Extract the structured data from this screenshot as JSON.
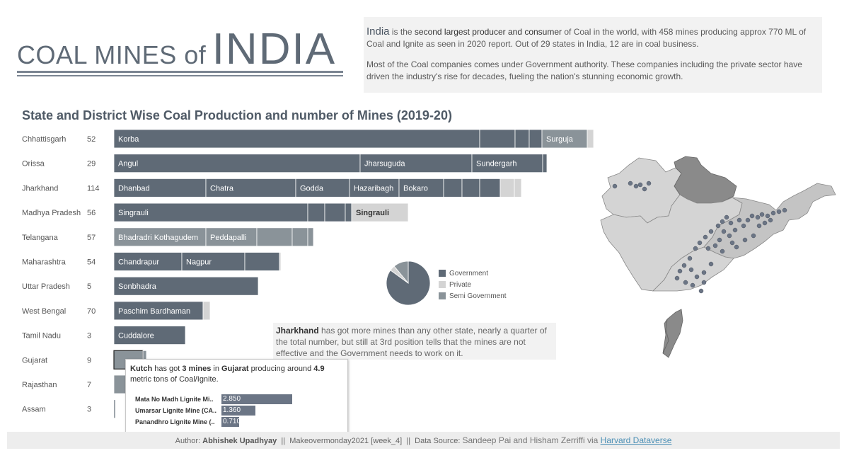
{
  "header": {
    "title_small": "COAL MINES of",
    "title_big": "INDIA",
    "intro_p1_india": "India",
    "intro_p1_a": " is the ",
    "intro_p1_b": "second largest producer and consumer",
    "intro_p1_c": " of Coal in the world, with 458 mines producing approx 770 ML of Coal and Ignite as seen in 2020 report. Out of 29 states in India, 12 are in coal business.",
    "intro_p2": "Most of the Coal companies comes under Government authority. These companies including the private sector have driven the industry's rise for decades, fueling the nation's stunning economic growth."
  },
  "subtitle": "State and District Wise Coal Production and number of Mines (2019-20)",
  "chart_data": {
    "type": "bar",
    "title": "State and District Wise Coal Production and number of Mines (2019-20)",
    "orientation": "horizontal-stacked",
    "colors": {
      "Government": "#5f6a76",
      "Private": "#d4d4d4",
      "Semi Government": "#8a9399"
    },
    "rows": [
      {
        "state": "Chhattisgarh",
        "mines": 52,
        "segments": [
          {
            "label": "Korba",
            "value": 517,
            "owner": "Government"
          },
          {
            "label": "",
            "value": 50,
            "owner": "Government"
          },
          {
            "label": "",
            "value": 20,
            "owner": "Government"
          },
          {
            "label": "",
            "value": 18,
            "owner": "Government"
          },
          {
            "label": "Surguja",
            "value": 64,
            "owner": "Semi Government"
          },
          {
            "label": "",
            "value": 9,
            "owner": "Private"
          }
        ]
      },
      {
        "state": "Orissa",
        "mines": 29,
        "segments": [
          {
            "label": "Angul",
            "value": 348,
            "owner": "Government"
          },
          {
            "label": "Jharsuguda",
            "value": 158,
            "owner": "Government"
          },
          {
            "label": "Sundergarh",
            "value": 100,
            "owner": "Government"
          },
          {
            "label": "",
            "value": 6,
            "owner": "Government"
          }
        ]
      },
      {
        "state": "Jharkhand",
        "mines": 114,
        "segments": [
          {
            "label": "Dhanbad",
            "value": 130,
            "owner": "Government"
          },
          {
            "label": "Chatra",
            "value": 127,
            "owner": "Government"
          },
          {
            "label": "Godda",
            "value": 76,
            "owner": "Government"
          },
          {
            "label": "Hazaribagh",
            "value": 70,
            "owner": "Government"
          },
          {
            "label": "Bokaro",
            "value": 63,
            "owner": "Government"
          },
          {
            "label": "",
            "value": 26,
            "owner": "Government"
          },
          {
            "label": "",
            "value": 25,
            "owner": "Government"
          },
          {
            "label": "",
            "value": 29,
            "owner": "Government"
          },
          {
            "label": "",
            "value": 20,
            "owner": "Private"
          },
          {
            "label": "",
            "value": 10,
            "owner": "Private"
          }
        ]
      },
      {
        "state": "Madhya Pradesh",
        "mines": 56,
        "segments": [
          {
            "label": "Singrauli",
            "value": 274,
            "owner": "Government"
          },
          {
            "label": "",
            "value": 24,
            "owner": "Government"
          },
          {
            "label": "",
            "value": 29,
            "owner": "Government"
          },
          {
            "label": "",
            "value": 9,
            "owner": "Government"
          },
          {
            "label": "Singrauli",
            "value": 80,
            "owner": "Private"
          }
        ]
      },
      {
        "state": "Telangana",
        "mines": 57,
        "segments": [
          {
            "label": "Bhadradri Kothagudem",
            "value": 130,
            "owner": "Semi Government"
          },
          {
            "label": "Peddapalli",
            "value": 72,
            "owner": "Semi Government"
          },
          {
            "label": "",
            "value": 50,
            "owner": "Semi Government"
          },
          {
            "label": "",
            "value": 22,
            "owner": "Semi Government"
          },
          {
            "label": "",
            "value": 8,
            "owner": "Semi Government"
          }
        ]
      },
      {
        "state": "Maharashtra",
        "mines": 54,
        "segments": [
          {
            "label": "Chandrapur",
            "value": 96,
            "owner": "Government"
          },
          {
            "label": "Nagpur",
            "value": 89,
            "owner": "Government"
          },
          {
            "label": "",
            "value": 49,
            "owner": "Government"
          },
          {
            "label": "",
            "value": 2,
            "owner": "Private"
          }
        ]
      },
      {
        "state": "Uttar Pradesh",
        "mines": 5,
        "segments": [
          {
            "label": "Sonbhadra",
            "value": 204,
            "owner": "Government"
          }
        ]
      },
      {
        "state": "West Bengal",
        "mines": 70,
        "segments": [
          {
            "label": "Paschim Bardhaman",
            "value": 126,
            "owner": "Government"
          },
          {
            "label": "",
            "value": 10,
            "owner": "Private"
          }
        ]
      },
      {
        "state": "Tamil Nadu",
        "mines": 3,
        "segments": [
          {
            "label": "Cuddalore",
            "value": 101,
            "owner": "Government"
          }
        ]
      },
      {
        "state": "Gujarat",
        "mines": 9,
        "segments": [
          {
            "label": "",
            "value": 41,
            "owner": "Semi Government",
            "highlight": true
          },
          {
            "label": "",
            "value": 5,
            "owner": "Semi Government"
          }
        ]
      },
      {
        "state": "Rajasthan",
        "mines": 7,
        "segments": [
          {
            "label": "",
            "value": 30,
            "owner": "Semi Government"
          }
        ]
      },
      {
        "state": "Assam",
        "mines": 3,
        "segments": [
          {
            "label": "",
            "value": 2,
            "owner": "Government"
          }
        ]
      }
    ],
    "pie": {
      "type": "pie",
      "slices": [
        {
          "name": "Government",
          "value": 85
        },
        {
          "name": "Private",
          "value": 4
        },
        {
          "name": "Semi Government",
          "value": 11
        }
      ]
    }
  },
  "legend": {
    "items": [
      {
        "label": "Government",
        "color": "#5f6a76"
      },
      {
        "label": "Private",
        "color": "#d4d4d4"
      },
      {
        "label": "Semi Government",
        "color": "#8a9399"
      }
    ]
  },
  "note": {
    "bold": "Jharkhand",
    "text": " has got more mines than any other state, nearly a quarter of the total number, but still at 3rd position tells that the mines are not effective and the Government needs to work on it."
  },
  "tooltip": {
    "t1": "Kutch",
    "t2": " has got ",
    "t3": "3 mines",
    "t4": " in ",
    "t5": "Gujarat",
    "t6": " producing around ",
    "t7": "4.9",
    "t8": " metric tons of Coal/Ignite.",
    "rows": [
      {
        "name": "Mata No Madh Lignite Mi..",
        "value": "2.850",
        "fraction": 1.0
      },
      {
        "name": "Umarsar Lignite Mine (CA..",
        "value": "1.360",
        "fraction": 0.477
      },
      {
        "name": "Panandhro Lignite Mine (..",
        "value": "0.710",
        "fraction": 0.249
      }
    ]
  },
  "footer": {
    "author_label": "Author: ",
    "author": "Abhishek Upadhyay",
    "sep1": "  ||  ",
    "event": "Makeovermonday2021 [week_4]",
    "sep2": "  ||  ",
    "source_label": "Data Source: ",
    "source": "Sandeep Pai and Hisham Zerriffi via ",
    "link": "Harvard Dataverse"
  }
}
